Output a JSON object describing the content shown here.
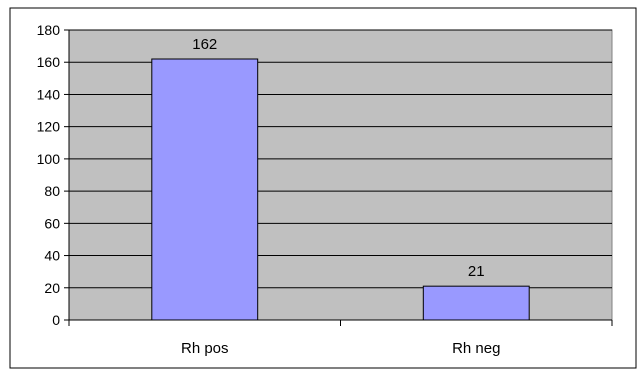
{
  "chart_data": {
    "type": "bar",
    "categories": [
      "Rh pos",
      "Rh neg"
    ],
    "values": [
      162,
      21
    ],
    "data_labels": [
      "162",
      "21"
    ],
    "ylim": [
      0,
      180
    ],
    "yticks": [
      0,
      20,
      40,
      60,
      80,
      100,
      120,
      140,
      160,
      180
    ],
    "title": "",
    "xlabel": "",
    "ylabel": "",
    "grid": true,
    "legend": "none"
  },
  "colors": {
    "plot_background": "#c0c0c0",
    "bar_fill": "#9999ff",
    "bar_stroke": "#000000",
    "gridline": "#000000",
    "frame_border": "#000000"
  }
}
